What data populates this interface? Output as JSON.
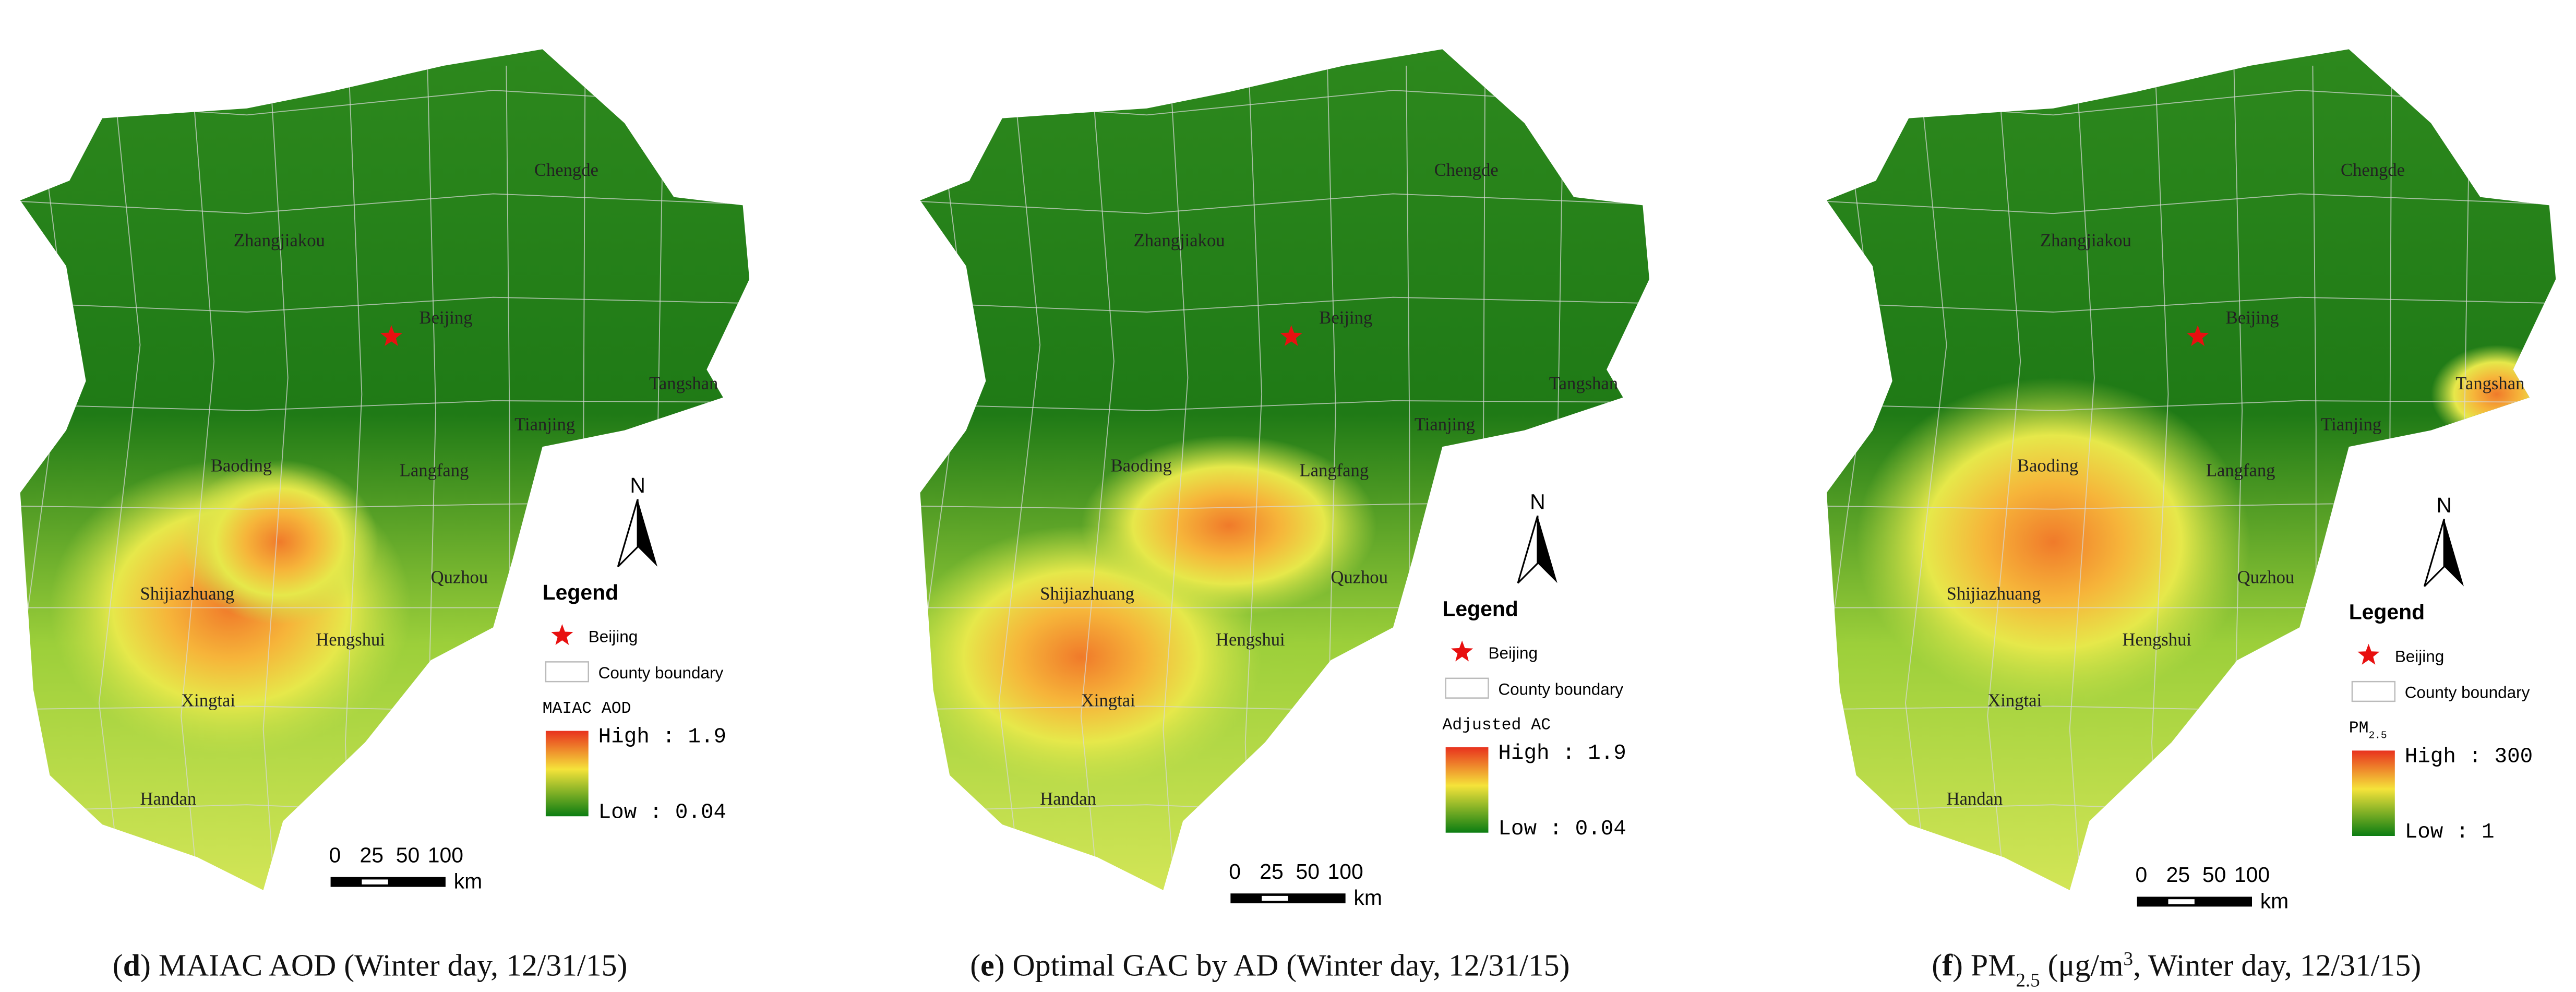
{
  "panels": [
    {
      "cities": [
        "Chengde",
        "Zhangjiakou",
        "Beijing",
        "Tangshan",
        "Tianjing",
        "Baoding",
        "Langfang",
        "Quzhou",
        "Shijiazhuang",
        "Hengshui",
        "Xingtai",
        "Handan"
      ],
      "north": "N",
      "legend": {
        "title": "Legend",
        "items": [
          "Beijing",
          "County boundary"
        ],
        "layer": [
          {
            "text": "MAIAC AOD",
            "style": "normal"
          }
        ],
        "high": "High : 1.9",
        "low": "Low : 0.04"
      },
      "scale": {
        "labels": [
          "0",
          "25",
          "50",
          "100"
        ],
        "unit": "km"
      },
      "caption": [
        {
          "text": "(",
          "style": "normal"
        },
        {
          "text": "d",
          "style": "bold"
        },
        {
          "text": ") MAIAC AOD (Winter day, 12/31/15)",
          "style": "normal"
        }
      ]
    },
    {
      "cities": [
        "Chengde",
        "Zhangjiakou",
        "Beijing",
        "Tangshan",
        "Tianjing",
        "Baoding",
        "Langfang",
        "Quzhou",
        "Shijiazhuang",
        "Hengshui",
        "Xingtai",
        "Handan"
      ],
      "north": "N",
      "legend": {
        "title": "Legend",
        "items": [
          "Beijing",
          "County boundary"
        ],
        "layer": [
          {
            "text": "Adjusted AC",
            "style": "normal"
          }
        ],
        "high": "High : 1.9",
        "low": "Low : 0.04"
      },
      "scale": {
        "labels": [
          "0",
          "25",
          "50",
          "100"
        ],
        "unit": "km"
      },
      "caption": [
        {
          "text": "(",
          "style": "normal"
        },
        {
          "text": "e",
          "style": "bold"
        },
        {
          "text": ") Optimal GAC by AD (Winter day, 12/31/15)",
          "style": "normal"
        }
      ]
    },
    {
      "cities": [
        "Chengde",
        "Zhangjiakou",
        "Beijing",
        "Tangshan",
        "Tianjing",
        "Baoding",
        "Langfang",
        "Quzhou",
        "Shijiazhuang",
        "Hengshui",
        "Xingtai",
        "Handan"
      ],
      "north": "N",
      "legend": {
        "title": "Legend",
        "items": [
          "Beijing",
          "County boundary"
        ],
        "layer": [
          {
            "text": "PM",
            "style": "normal"
          },
          {
            "text": "2.5",
            "style": "sub"
          }
        ],
        "high": "High : 300",
        "low": "Low : 1"
      },
      "scale": {
        "labels": [
          "0",
          "25",
          "50",
          "100"
        ],
        "unit": "km"
      },
      "caption": [
        {
          "text": "(",
          "style": "normal"
        },
        {
          "text": "f",
          "style": "bold"
        },
        {
          "text": ") PM",
          "style": "normal"
        },
        {
          "text": "2.5",
          "style": "sub"
        },
        {
          "text": " (μg/m",
          "style": "normal"
        },
        {
          "text": "3",
          "style": "sup"
        },
        {
          "text": ", Winter day, 12/31/15)",
          "style": "normal"
        }
      ]
    }
  ]
}
